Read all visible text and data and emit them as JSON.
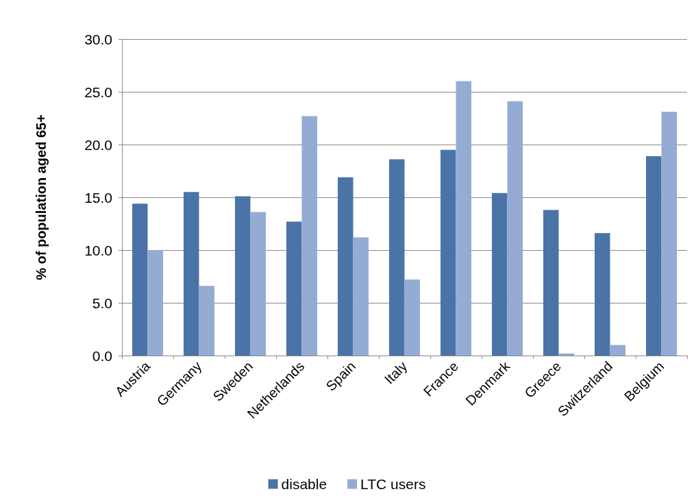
{
  "chart_data": {
    "type": "bar",
    "ylabel": "% of population aged 65+",
    "categories": [
      "Austria",
      "Germany",
      "Sweden",
      "Netherlands",
      "Spain",
      "Italy",
      "France",
      "Denmark",
      "Greece",
      "Switzerland",
      "Belgium"
    ],
    "series": [
      {
        "name": "disable",
        "color": "#4a74a8",
        "values": [
          14.4,
          15.5,
          15.1,
          12.7,
          16.9,
          18.6,
          19.5,
          15.4,
          13.8,
          11.6,
          18.9
        ]
      },
      {
        "name": "LTC users",
        "color": "#94abd3",
        "values": [
          10.0,
          6.6,
          13.6,
          22.7,
          11.2,
          7.2,
          26.0,
          24.1,
          0.2,
          1.0,
          23.1
        ]
      }
    ],
    "ylim": [
      0,
      30
    ],
    "yticks": [
      {
        "value": 0,
        "label": "0.0"
      },
      {
        "value": 5,
        "label": "5.0"
      },
      {
        "value": 10,
        "label": "10.0"
      },
      {
        "value": 15,
        "label": "15.0"
      },
      {
        "value": 20,
        "label": "20.0"
      },
      {
        "value": 25,
        "label": "25.0"
      },
      {
        "value": 30,
        "label": "30.0"
      }
    ],
    "grid": "y",
    "legend": "bottom"
  }
}
